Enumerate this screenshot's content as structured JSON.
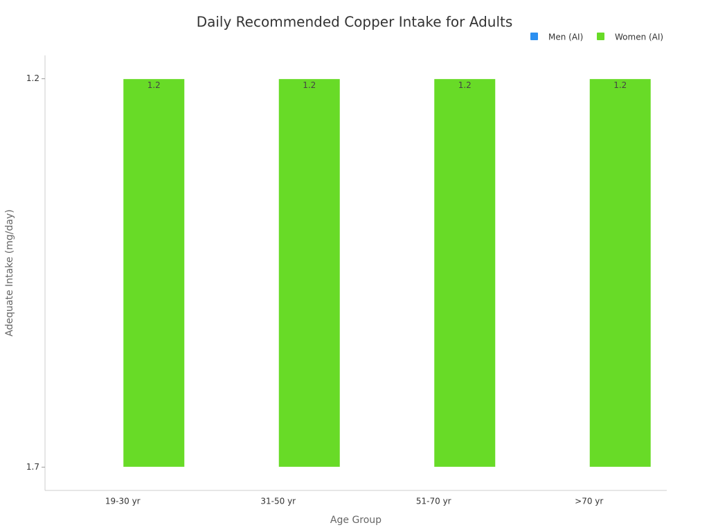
{
  "chart_data": {
    "type": "bar",
    "title": "Daily Recommended Copper Intake for Adults",
    "x_label": "Age Group",
    "y_label": "Adequate Intake (mg/day)",
    "categories": [
      "19-30 yr",
      "31-50 yr",
      "51-70 yr",
      ">70 yr"
    ],
    "series": [
      {
        "name": "Men (AI)",
        "color": "#2b8ff0",
        "values": [
          null,
          null,
          null,
          null
        ]
      },
      {
        "name": "Women (AI)",
        "color": "#68db27",
        "values": [
          1.2,
          1.2,
          1.2,
          1.2
        ]
      }
    ],
    "ylim": [
      1.73,
      1.17
    ],
    "yticks": [
      1.7,
      1.2
    ],
    "legend": "top-right"
  }
}
